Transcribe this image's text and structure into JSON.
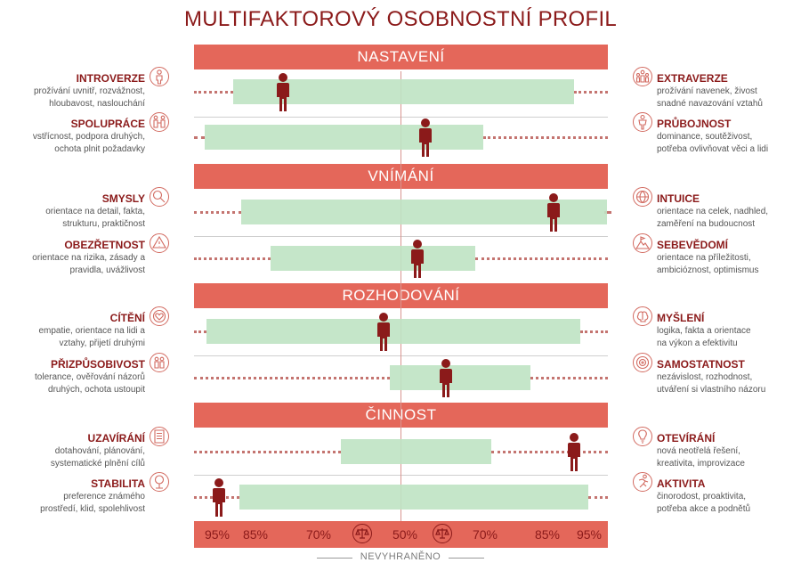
{
  "title": "MULTIFAKTOROVÝ OSOBNOSTNÍ PROFIL",
  "colors": {
    "section": "#e4675a",
    "band": "#bfe3c3",
    "marker": "#8b1a1a",
    "text": "#8b1a1a"
  },
  "sections": [
    "NASTAVENÍ",
    "VNÍMÁNÍ",
    "ROZHODOVÁNÍ",
    "ČINNOST"
  ],
  "rows": [
    {
      "left": {
        "name": "INTROVERZE",
        "desc": [
          "prožívání uvnitř, rozvážnost,",
          "hloubavost, naslouchání"
        ],
        "icon": "person-icon"
      },
      "right": {
        "name": "EXTRAVERZE",
        "desc": [
          "prožívání navenek, živost",
          "snadné navazování vztahů"
        ],
        "icon": "group-icon"
      }
    },
    {
      "left": {
        "name": "SPOLUPRÁCE",
        "desc": [
          "vstřícnost, podpora druhých,",
          "ochota plnit požadavky"
        ],
        "icon": "handshake-icon"
      },
      "right": {
        "name": "PRŮBOJNOST",
        "desc": [
          "dominance, soutěživost,",
          "potřeba ovlivňovat věci a lidi"
        ],
        "icon": "figure-icon"
      }
    },
    {
      "left": {
        "name": "SMYSLY",
        "desc": [
          "orientace na detail, fakta,",
          "strukturu, praktičnost"
        ],
        "icon": "magnifier-icon"
      },
      "right": {
        "name": "INTUICE",
        "desc": [
          "orientace na celek, nadhled,",
          "zaměření na budoucnost"
        ],
        "icon": "globe-icon"
      }
    },
    {
      "left": {
        "name": "OBEZŘETNOST",
        "desc": [
          "orientace na rizika, zásady a",
          "pravidla, uvážlivost"
        ],
        "icon": "warning-icon"
      },
      "right": {
        "name": "SEBEVĚDOMÍ",
        "desc": [
          "orientace na příležitosti,",
          "ambicióznost, optimismus"
        ],
        "icon": "mountain-flag-icon"
      }
    },
    {
      "left": {
        "name": "CÍTĚNÍ",
        "desc": [
          "empatie, orientace na lidi a",
          "vztahy, přijetí druhými"
        ],
        "icon": "heart-icon"
      },
      "right": {
        "name": "MYŠLENÍ",
        "desc": [
          "logika, fakta a orientace",
          "na výkon a efektivitu"
        ],
        "icon": "brain-icon"
      }
    },
    {
      "left": {
        "name": "PŘIZPŮSOBIVOST",
        "desc": [
          "tolerance, ověřování názorů",
          "druhých, ochota ustoupit"
        ],
        "icon": "people-icon"
      },
      "right": {
        "name": "SAMOSTATNOST",
        "desc": [
          "nezávislost, rozhodnost,",
          "utváření si vlastního názoru"
        ],
        "icon": "target-icon"
      }
    },
    {
      "left": {
        "name": "UZAVÍRÁNÍ",
        "desc": [
          "dotahování, plánování,",
          "systematické plnění cílů"
        ],
        "icon": "checklist-icon"
      },
      "right": {
        "name": "OTEVÍRÁNÍ",
        "desc": [
          "nová neotřelá řešení,",
          "kreativita, improvizace"
        ],
        "icon": "lightbulb-icon"
      }
    },
    {
      "left": {
        "name": "STABILITA",
        "desc": [
          "preference známého",
          "prostředí, klid, spolehlivost"
        ],
        "icon": "tree-icon"
      },
      "right": {
        "name": "AKTIVITA",
        "desc": [
          "činorodost, proaktivita,",
          "potřeba akce a podnětů"
        ],
        "icon": "runner-icon"
      }
    }
  ],
  "scale": {
    "ticks": [
      "95%",
      "85%",
      "70%",
      "50%",
      "70%",
      "85%",
      "95%"
    ],
    "center_label": "NEVYHRANĚNO",
    "icon": "scales-icon"
  },
  "chart_data": {
    "type": "bar",
    "title": "MULTIFAKTOROVÝ OSOBNOSTNÍ PROFIL",
    "note": "Bipolar scale: negative values lean to the left trait, positive values lean to the right trait. Scale ticks: 95%, 85%, 70%, 50% (center), 70%, 85%, 95%.",
    "categories": [
      "INTROVERZE – EXTRAVERZE",
      "SPOLUPRÁCE – PRŮBOJNOST",
      "SMYSLY – INTUICE",
      "OBEZŘETNOST – SEBEVĚDOMÍ",
      "CÍTĚNÍ – MYŠLENÍ",
      "PŘIZPŮSOBIVOST – SAMOSTATNOST",
      "UZAVÍRÁNÍ – OTEVÍRÁNÍ",
      "STABILITA – AKTIVITA"
    ],
    "band_start": [
      -81,
      -95,
      -77,
      -63,
      -94,
      -5,
      -29,
      -78
    ],
    "band_end": [
      84,
      40,
      100,
      36,
      87,
      63,
      44,
      91
    ],
    "marker": [
      -57,
      12,
      74,
      8,
      -8,
      22,
      84,
      -88
    ],
    "xlim": [
      -100,
      100
    ]
  }
}
